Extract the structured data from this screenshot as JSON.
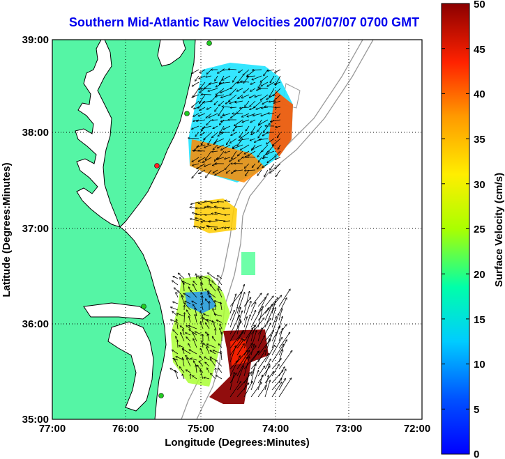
{
  "title": "Southern Mid-Atlantic Raw Velocities 2007/07/07 0700 GMT",
  "x_axis": {
    "label": "Longitude (Degrees:Minutes)",
    "ticks": [
      "77:00",
      "76:00",
      "75:00",
      "74:00",
      "73:00",
      "72:00"
    ]
  },
  "y_axis": {
    "label": "Latitude (Degrees:Minutes)",
    "ticks": [
      "39:00",
      "38:00",
      "37:00",
      "36:00",
      "35:00"
    ]
  },
  "colorbar": {
    "label": "Surface Velocity (cm/s)",
    "ticks": [
      "50",
      "45",
      "40",
      "35",
      "30",
      "25",
      "20",
      "15",
      "10",
      "5",
      "0"
    ],
    "min": 0,
    "max": 50,
    "colormap": "jet"
  },
  "colors": {
    "land": "#55f5a5",
    "coast_line": "#000000",
    "bathymetry": "#999999",
    "title": "#0000ee",
    "grid": "#000000"
  },
  "stations": [
    {
      "status": "active",
      "color": "#22cc22"
    },
    {
      "status": "active",
      "color": "#22cc22"
    },
    {
      "status": "inactive",
      "color": "#ff2222"
    },
    {
      "status": "active",
      "color": "#22cc22"
    },
    {
      "status": "active",
      "color": "#22cc22"
    }
  ]
}
